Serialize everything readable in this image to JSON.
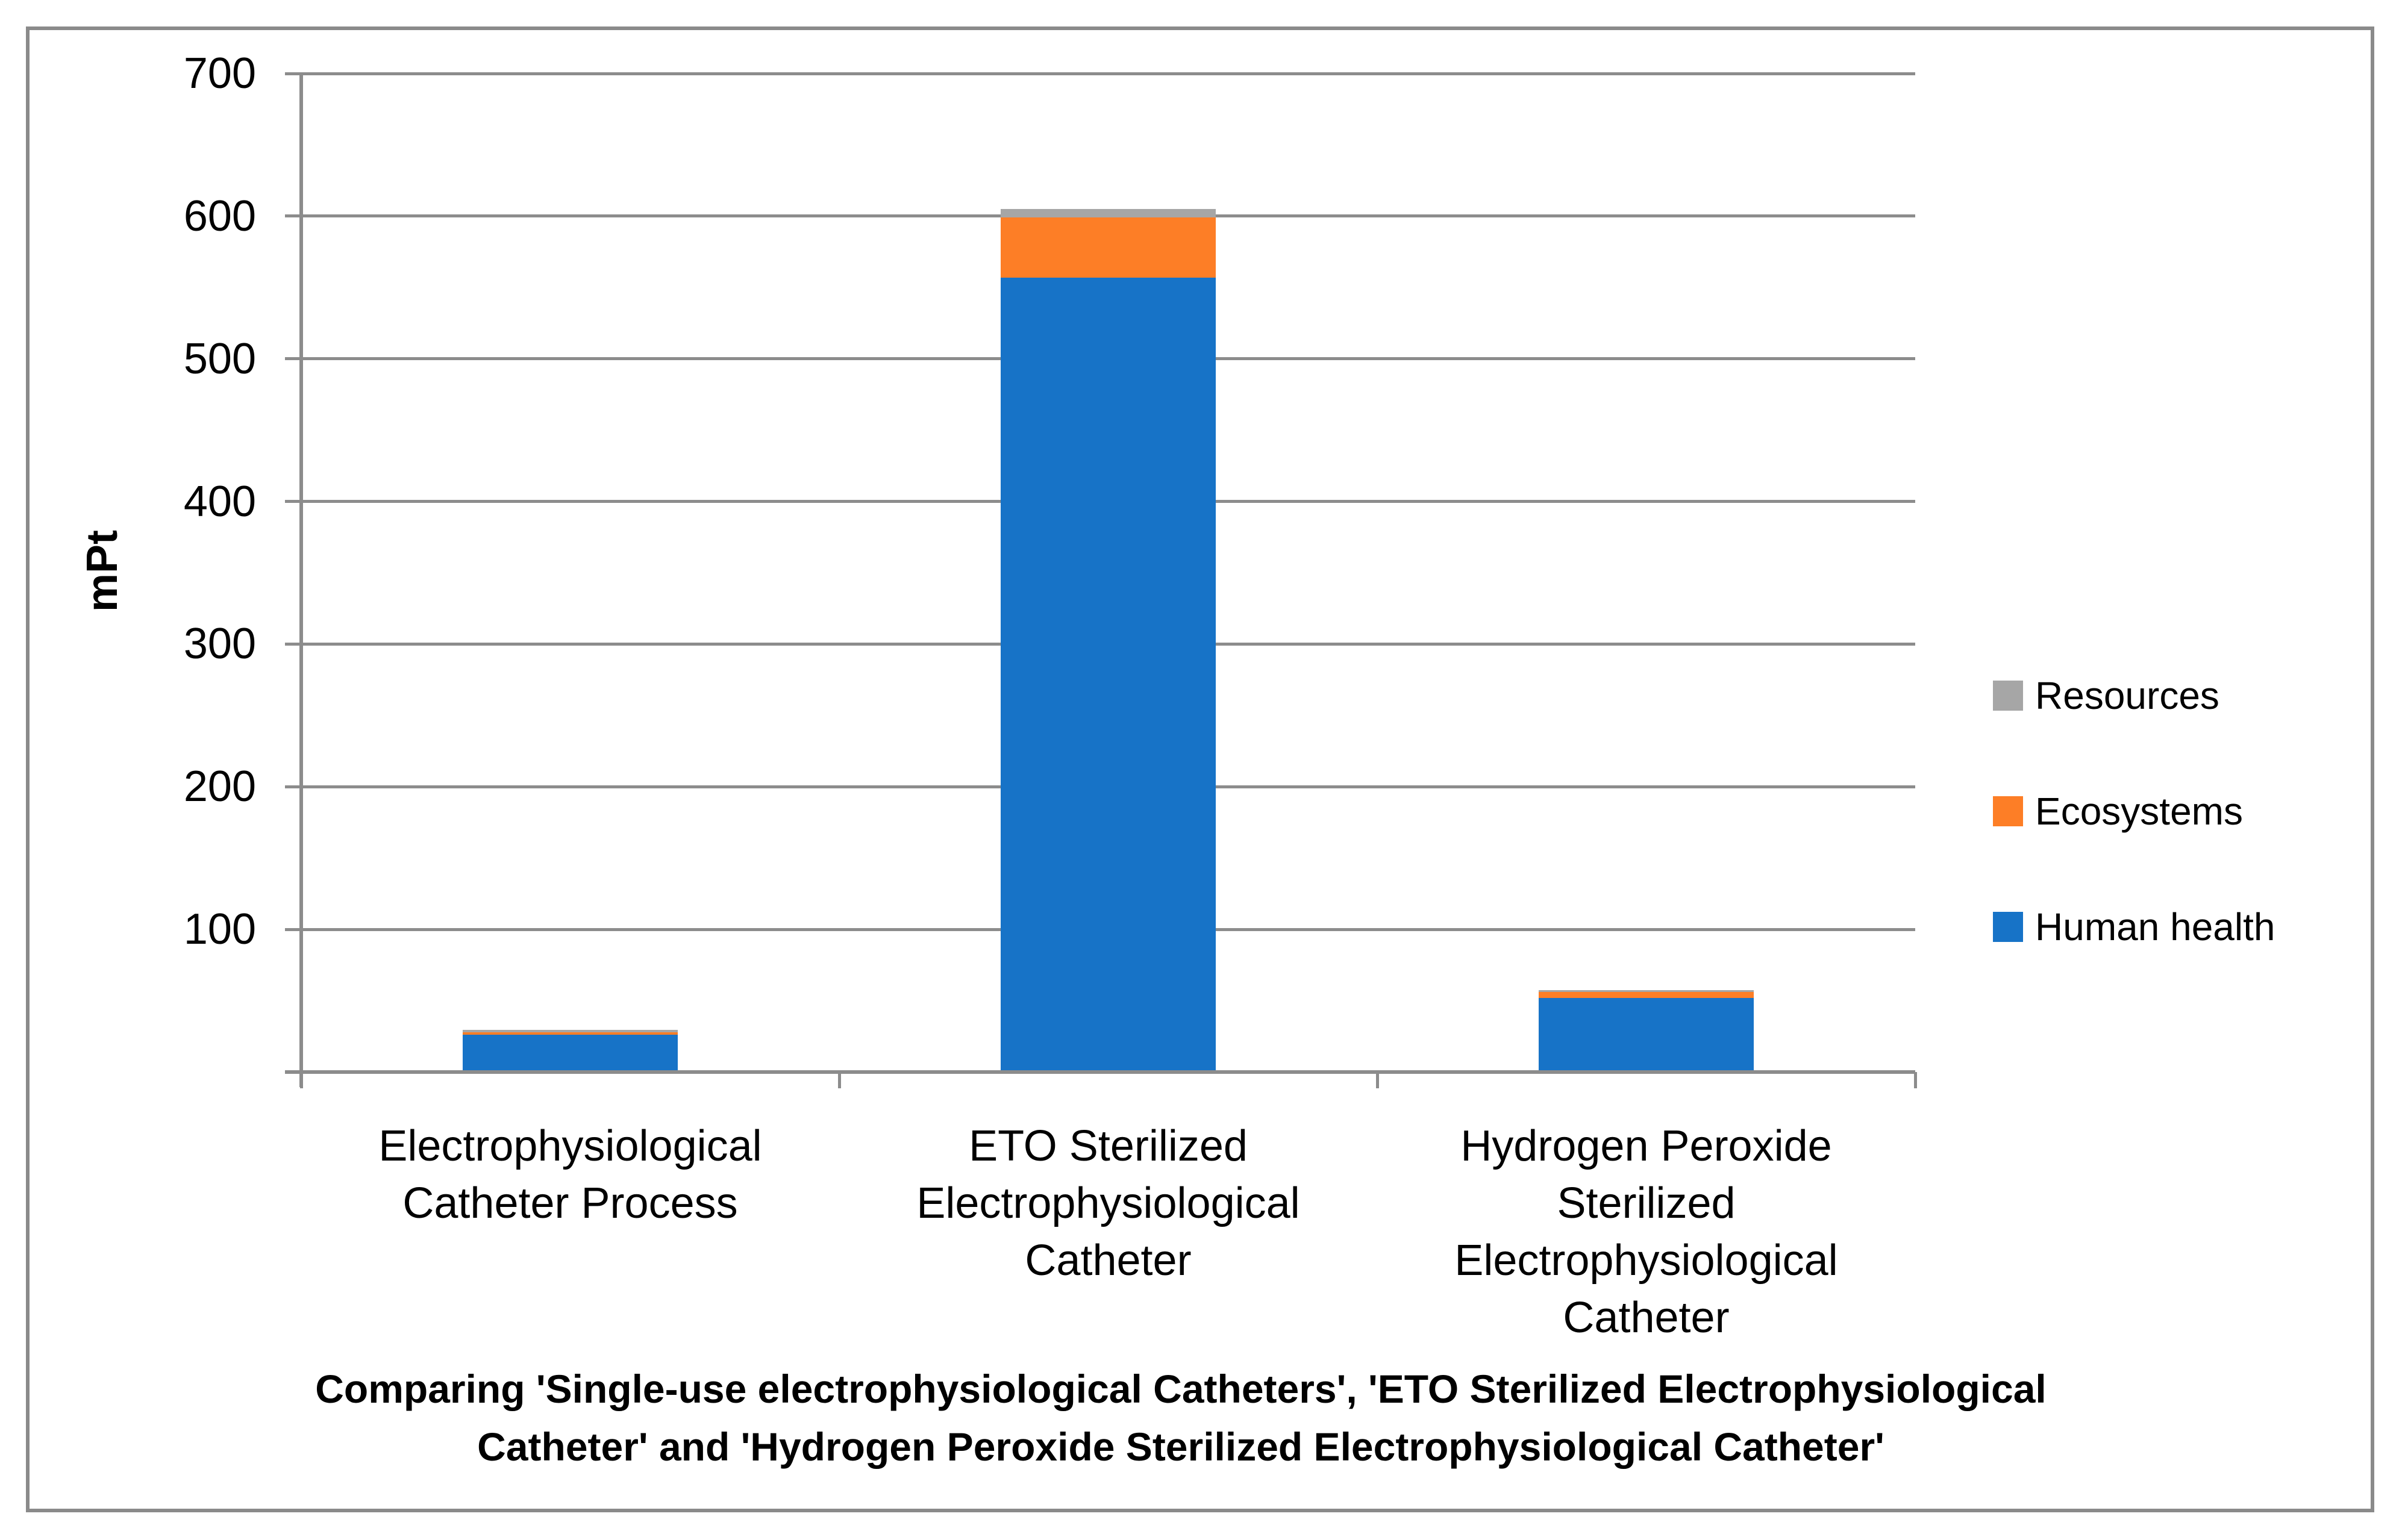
{
  "chart_data": {
    "type": "bar",
    "stacked": true,
    "title": "Comparing 'Single-use electrophysiological Catheters', 'ETO Sterilized Electrophysiological Catheter' and 'Hydrogen Peroxide Sterilized Electrophysiological Catheter'",
    "title_lines": [
      "Comparing 'Single-use electrophysiological Catheters', 'ETO Sterilized Electrophysiological",
      "Catheter' and 'Hydrogen Peroxide Sterilized Electrophysiological Catheter'"
    ],
    "ylabel": "mPt",
    "xlabel": "",
    "ylim": [
      0,
      700
    ],
    "ytick_step": 100,
    "yticks": [
      "700",
      "600",
      "500",
      "400",
      "300",
      "200",
      "100"
    ],
    "grid": true,
    "legend_position": "right",
    "categories": [
      "Electrophysiological Catheter Process",
      "ETO Sterilized Electrophysiological Catheter",
      "Hydrogen Peroxide Sterilized Electrophysiological Catheter"
    ],
    "category_label_lines": [
      [
        "Electrophysiological",
        "Catheter Process"
      ],
      [
        "ETO Sterilized",
        "Electrophysiological",
        "Catheter"
      ],
      [
        "Hydrogen Peroxide",
        "Sterilized",
        "Electrophysiological",
        "Catheter"
      ]
    ],
    "series": [
      {
        "name": "Resources",
        "color": "#A6A6A6",
        "values": [
          1.5,
          6,
          1.5
        ]
      },
      {
        "name": "Ecosystems",
        "color": "#FD7E26",
        "values": [
          2,
          42,
          4
        ]
      },
      {
        "name": "Human health",
        "color": "#1773C7",
        "values": [
          26,
          557,
          52
        ]
      }
    ]
  },
  "colors": {
    "grid": "#8C8C8C",
    "axis": "#8C8C8C",
    "border": "#8A8A8A",
    "background": "#FFFFFF",
    "text": "#000000"
  }
}
